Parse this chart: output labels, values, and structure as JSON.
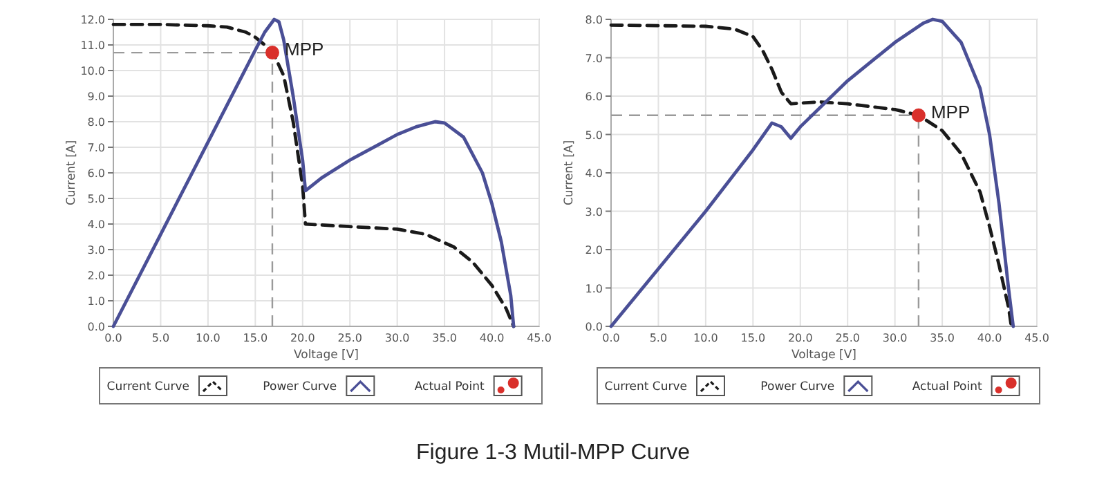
{
  "chart_data": [
    {
      "type": "line",
      "xlabel": "Voltage [V]",
      "ylabel": "Current [A]",
      "grid": true,
      "legend": "bottom",
      "xlim": [
        0,
        45
      ],
      "ylim": [
        0,
        12
      ],
      "xticks": [
        {
          "value": 0,
          "label": "0.0"
        },
        {
          "value": 5,
          "label": "5.0"
        },
        {
          "value": 10,
          "label": "10.0"
        },
        {
          "value": 15,
          "label": "15.0"
        },
        {
          "value": 20,
          "label": "20.0"
        },
        {
          "value": 25,
          "label": "25.0"
        },
        {
          "value": 30,
          "label": "30.0"
        },
        {
          "value": 35,
          "label": "35.0"
        },
        {
          "value": 40,
          "label": "40.0"
        },
        {
          "value": 45,
          "label": "45.0"
        }
      ],
      "yticks": [
        {
          "value": 0,
          "label": "0.0"
        },
        {
          "value": 1,
          "label": "1.0"
        },
        {
          "value": 2,
          "label": "2.0"
        },
        {
          "value": 3,
          "label": "3.0"
        },
        {
          "value": 4,
          "label": "4.0"
        },
        {
          "value": 5,
          "label": "5.0"
        },
        {
          "value": 6,
          "label": "6.0"
        },
        {
          "value": 7,
          "label": "7.0"
        },
        {
          "value": 8,
          "label": "8.0"
        },
        {
          "value": 9,
          "label": "9.0"
        },
        {
          "value": 10,
          "label": "10.0"
        },
        {
          "value": 11,
          "label": "11.0"
        },
        {
          "value": 12,
          "label": "12.0"
        }
      ],
      "series": [
        {
          "name": "Current Curve",
          "type": "line",
          "line_style": "dashed",
          "color": "#1a1a1a",
          "x": [
            0,
            5,
            10,
            12,
            14,
            15,
            16,
            17,
            18,
            19,
            20,
            20.3,
            25,
            30,
            33,
            36,
            38,
            40,
            41.5,
            42.3
          ],
          "values": [
            11.8,
            11.8,
            11.75,
            11.7,
            11.5,
            11.3,
            11.0,
            10.6,
            9.8,
            8.0,
            5.5,
            4.0,
            3.9,
            3.8,
            3.6,
            3.1,
            2.5,
            1.6,
            0.7,
            0
          ]
        },
        {
          "name": "Power Curve",
          "type": "line",
          "line_style": "solid",
          "color": "#4a4f96",
          "x": [
            0,
            5,
            10,
            15,
            16,
            17,
            17.5,
            18,
            19,
            20,
            20.3,
            22,
            25,
            28,
            30,
            32,
            34,
            35,
            37,
            39,
            40,
            41,
            42,
            42.3
          ],
          "values": [
            0,
            3.6,
            7.2,
            10.8,
            11.5,
            12.0,
            11.9,
            11.2,
            9.0,
            6.5,
            5.3,
            5.8,
            6.5,
            7.1,
            7.5,
            7.8,
            8.0,
            7.95,
            7.4,
            6.0,
            4.8,
            3.3,
            1.2,
            0
          ]
        },
        {
          "name": "Actual Point",
          "type": "scatter",
          "marker": "circle",
          "color": "#d9302b",
          "x": [
            16.8
          ],
          "values": [
            10.7
          ]
        }
      ],
      "ref_lines": [
        {
          "axis": "x",
          "value": 16.8,
          "color": "#9a9a9a",
          "line_style": "dashed"
        },
        {
          "axis": "y",
          "value": 10.7,
          "color": "#9a9a9a",
          "line_style": "dashed"
        }
      ],
      "annotations": [
        {
          "text": "MPP",
          "x": 16.8,
          "y": 10.7
        }
      ]
    },
    {
      "type": "line",
      "xlabel": "Voltage [V]",
      "ylabel": "Current [A]",
      "grid": true,
      "legend": "bottom",
      "xlim": [
        0,
        45
      ],
      "ylim": [
        0,
        8
      ],
      "xticks": [
        {
          "value": 0,
          "label": "0.0"
        },
        {
          "value": 5,
          "label": "5.0"
        },
        {
          "value": 10,
          "label": "10.0"
        },
        {
          "value": 15,
          "label": "15.0"
        },
        {
          "value": 20,
          "label": "20.0"
        },
        {
          "value": 25,
          "label": "25.0"
        },
        {
          "value": 30,
          "label": "30.0"
        },
        {
          "value": 35,
          "label": "35.0"
        },
        {
          "value": 40,
          "label": "40.0"
        },
        {
          "value": 45,
          "label": "45.0"
        }
      ],
      "yticks": [
        {
          "value": 0,
          "label": "0.0"
        },
        {
          "value": 1,
          "label": "1.0"
        },
        {
          "value": 2,
          "label": "2.0"
        },
        {
          "value": 3,
          "label": "3.0"
        },
        {
          "value": 4,
          "label": "4.0"
        },
        {
          "value": 5,
          "label": "5.0"
        },
        {
          "value": 6,
          "label": "6.0"
        },
        {
          "value": 7,
          "label": "7.0"
        },
        {
          "value": 8,
          "label": "8.0"
        }
      ],
      "series": [
        {
          "name": "Current Curve",
          "type": "line",
          "line_style": "dashed",
          "color": "#1a1a1a",
          "x": [
            0,
            10,
            13,
            15,
            16,
            17,
            18,
            19,
            22,
            25,
            30,
            32.5,
            35,
            37,
            39,
            40,
            41,
            42,
            42.3
          ],
          "values": [
            7.85,
            7.82,
            7.75,
            7.55,
            7.2,
            6.7,
            6.1,
            5.8,
            5.85,
            5.8,
            5.65,
            5.5,
            5.1,
            4.5,
            3.5,
            2.6,
            1.6,
            0.5,
            0
          ]
        },
        {
          "name": "Power Curve",
          "type": "line",
          "line_style": "solid",
          "color": "#4a4f96",
          "x": [
            0,
            5,
            10,
            15,
            17,
            18,
            19,
            20,
            25,
            30,
            33,
            34,
            35,
            37,
            39,
            40,
            41,
            42,
            42.5
          ],
          "values": [
            0,
            1.5,
            3.0,
            4.6,
            5.3,
            5.2,
            4.9,
            5.2,
            6.4,
            7.4,
            7.9,
            8.0,
            7.95,
            7.4,
            6.2,
            5.0,
            3.2,
            1.0,
            0
          ]
        },
        {
          "name": "Actual Point",
          "type": "scatter",
          "marker": "circle",
          "color": "#d9302b",
          "x": [
            32.5
          ],
          "values": [
            5.5
          ]
        }
      ],
      "ref_lines": [
        {
          "axis": "x",
          "value": 32.5,
          "color": "#9a9a9a",
          "line_style": "dashed"
        },
        {
          "axis": "y",
          "value": 5.5,
          "color": "#9a9a9a",
          "line_style": "dashed"
        }
      ],
      "annotations": [
        {
          "text": "MPP",
          "x": 32.5,
          "y": 5.5
        }
      ]
    },
    {
      "type": "other",
      "annotations": [
        "Figure 1-3 Mutil-MPP Curve"
      ]
    }
  ]
}
